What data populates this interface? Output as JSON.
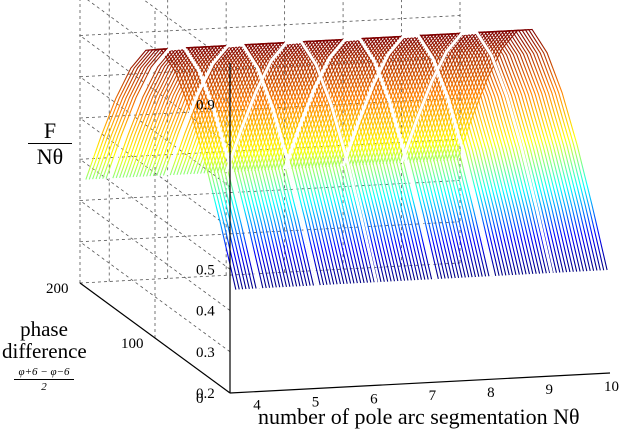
{
  "chart_data": {
    "type": "surface",
    "xlabel": "number of pole arc segmentation Nθ",
    "zlabel_numerator": "F",
    "zlabel_denominator": "Nθ",
    "ylabel_line1": "phase",
    "ylabel_line2": "difference",
    "ylabel_fraction_numerator": "φ+6 − φ−6",
    "ylabel_fraction_denominator": "2",
    "x_ticks": [
      "4",
      "5",
      "6",
      "7",
      "8",
      "9",
      "10"
    ],
    "y_ticks": [
      "0",
      "100",
      "200"
    ],
    "z_ticks": [
      "0.2",
      "0.3",
      "0.4",
      "0.5",
      "0.9"
    ],
    "x_range": [
      3.5,
      10
    ],
    "y_range": [
      0,
      200
    ],
    "z_range": [
      0.2,
      1.0
    ],
    "colormap": "jet",
    "grid": true,
    "surface_profile": {
      "phase": [
        0,
        20,
        40,
        60,
        80,
        100,
        120,
        140,
        160,
        180,
        200
      ],
      "F_over_Ntheta": [
        0.45,
        0.58,
        0.7,
        0.8,
        0.87,
        0.9,
        0.87,
        0.8,
        0.7,
        0.58,
        0.45
      ]
    }
  }
}
